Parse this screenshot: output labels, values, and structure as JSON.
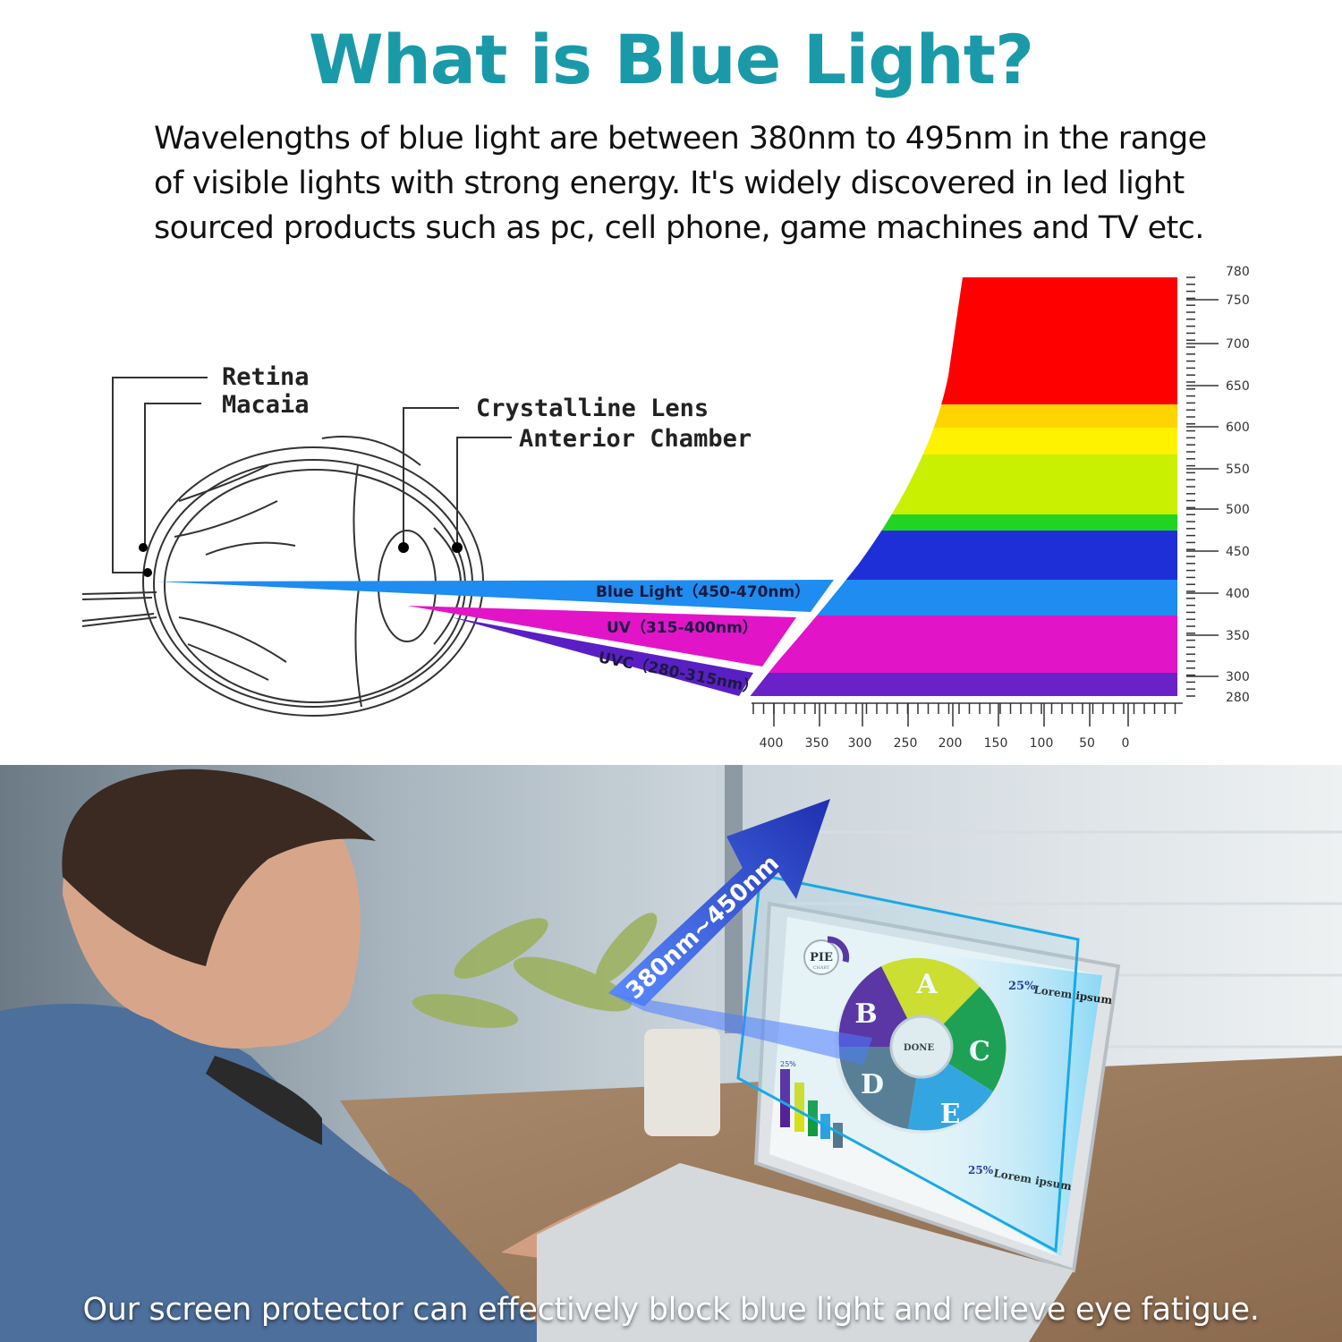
{
  "header": {
    "title": "What is Blue Light?",
    "intro_lines": [
      "Wavelengths of blue light are between 380nm to 495nm in the range",
      "of visible lights with strong energy. It's widely discovered in led light",
      "sourced products such as pc, cell phone, game machines and TV etc."
    ]
  },
  "eye_diagram": {
    "labels": {
      "retina": "Retina",
      "macaia": "Macaia",
      "crystalline_lens": "Crystalline Lens",
      "anterior_chamber": "Anterior Chamber"
    },
    "beams": [
      {
        "label": "Blue Light（450-470nm）",
        "color": "#1e8cf0"
      },
      {
        "label": "UV（315-400nm）",
        "color": "#e214c8"
      },
      {
        "label": "UVC（280-315nm）",
        "color": "#5a1fc4"
      }
    ]
  },
  "spectrum": {
    "right_axis_ticks": [
      "780",
      "750",
      "700",
      "650",
      "600",
      "550",
      "500",
      "450",
      "400",
      "350",
      "300",
      "280"
    ],
    "bottom_axis_ticks": [
      "400",
      "350",
      "300",
      "250",
      "200",
      "150",
      "100",
      "50",
      "0"
    ],
    "bands": [
      "#ff0000",
      "#ffd400",
      "#fff200",
      "#c8f000",
      "#22d422",
      "#1f2fd8",
      "#1e8cf0",
      "#e214c8",
      "#6a22c8"
    ]
  },
  "photo": {
    "arrow_label": "380nm~450nm",
    "screen": {
      "logo_main": "PIE",
      "logo_sub": "CHART",
      "pie_segments": [
        "A",
        "B",
        "C",
        "D",
        "E"
      ],
      "center_button": "DONE",
      "callout_percent_1": "25%",
      "callout_title_1": "Lorem ipsum",
      "callout_percent_2": "25%",
      "callout_title_2": "Lorem ipsum",
      "bar_label": "25%"
    },
    "caption": "Our screen protector can effectively block blue light and relieve eye fatigue."
  }
}
